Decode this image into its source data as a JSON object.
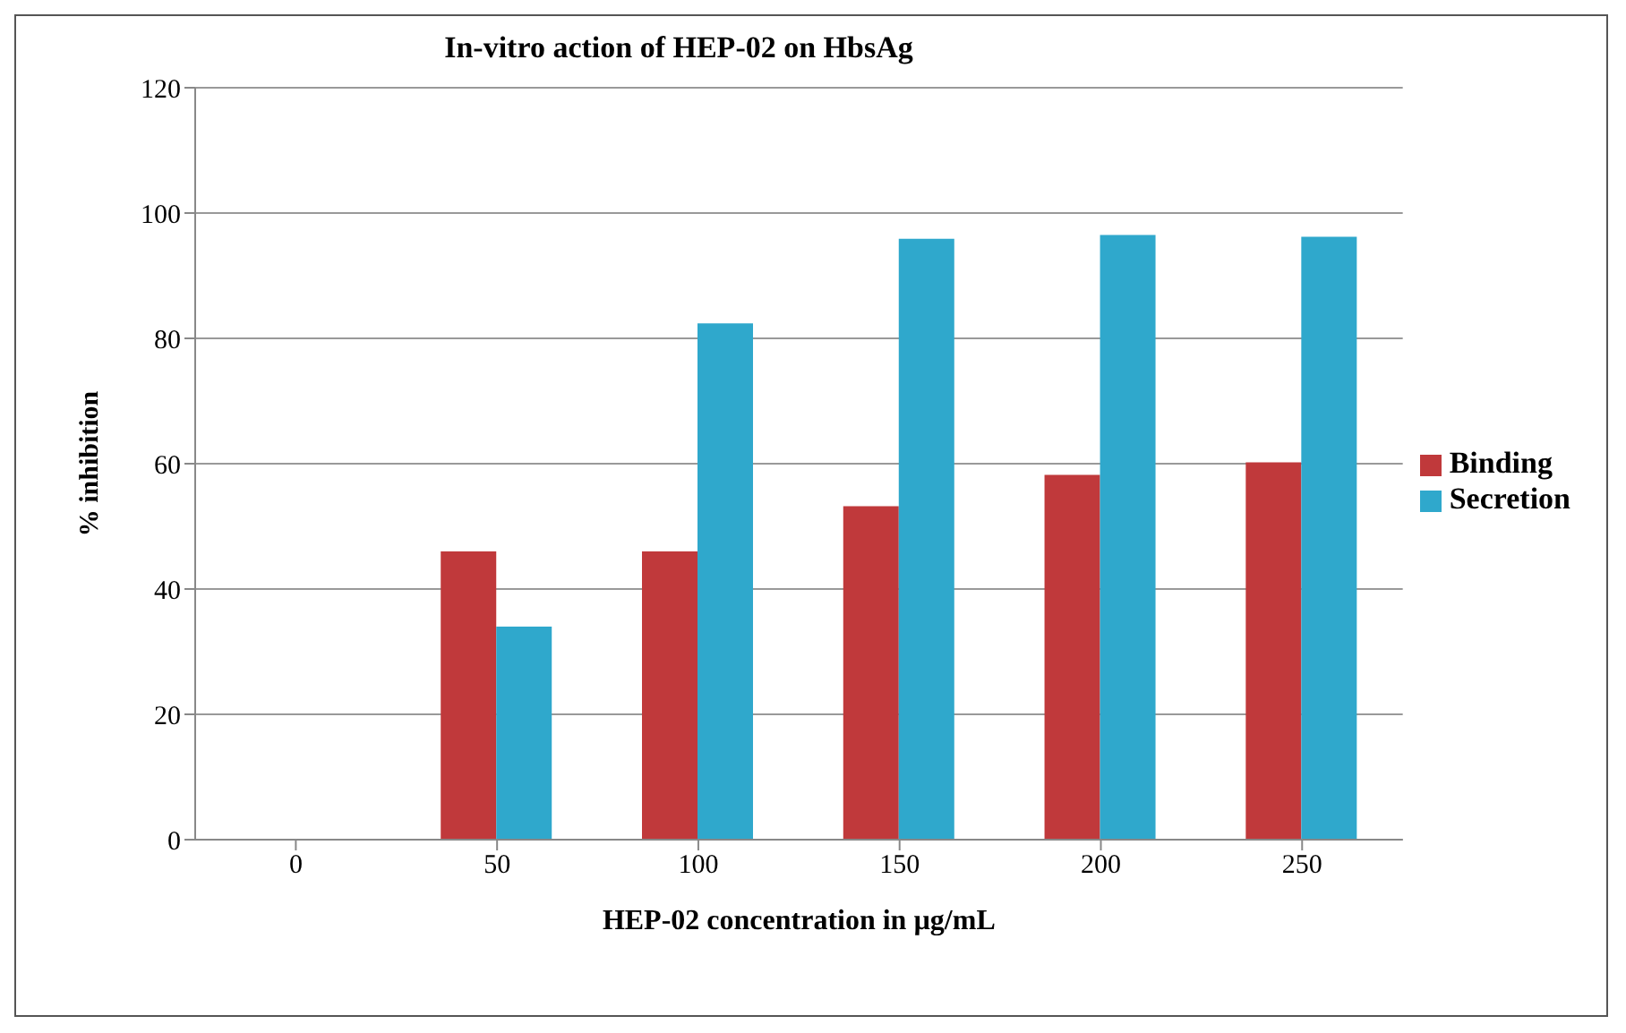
{
  "chart_data": {
    "type": "bar",
    "title": "In-vitro action of HEP-02 on HbsAg",
    "xlabel": "HEP-02 concentration in µg/mL",
    "ylabel": "% inhibition",
    "categories": [
      "0",
      "50",
      "100",
      "150",
      "200",
      "250"
    ],
    "series": [
      {
        "name": "Binding",
        "color": "#c0393b",
        "values": [
          null,
          46,
          46,
          53.2,
          58.2,
          60.2
        ]
      },
      {
        "name": "Secretion",
        "color": "#2fa8cc",
        "values": [
          null,
          34,
          82.4,
          95.9,
          96.5,
          96.2
        ]
      }
    ],
    "ylim": [
      0,
      120
    ],
    "yticks": [
      0,
      20,
      40,
      60,
      80,
      100,
      120
    ],
    "grid": "y",
    "legend": "right"
  }
}
